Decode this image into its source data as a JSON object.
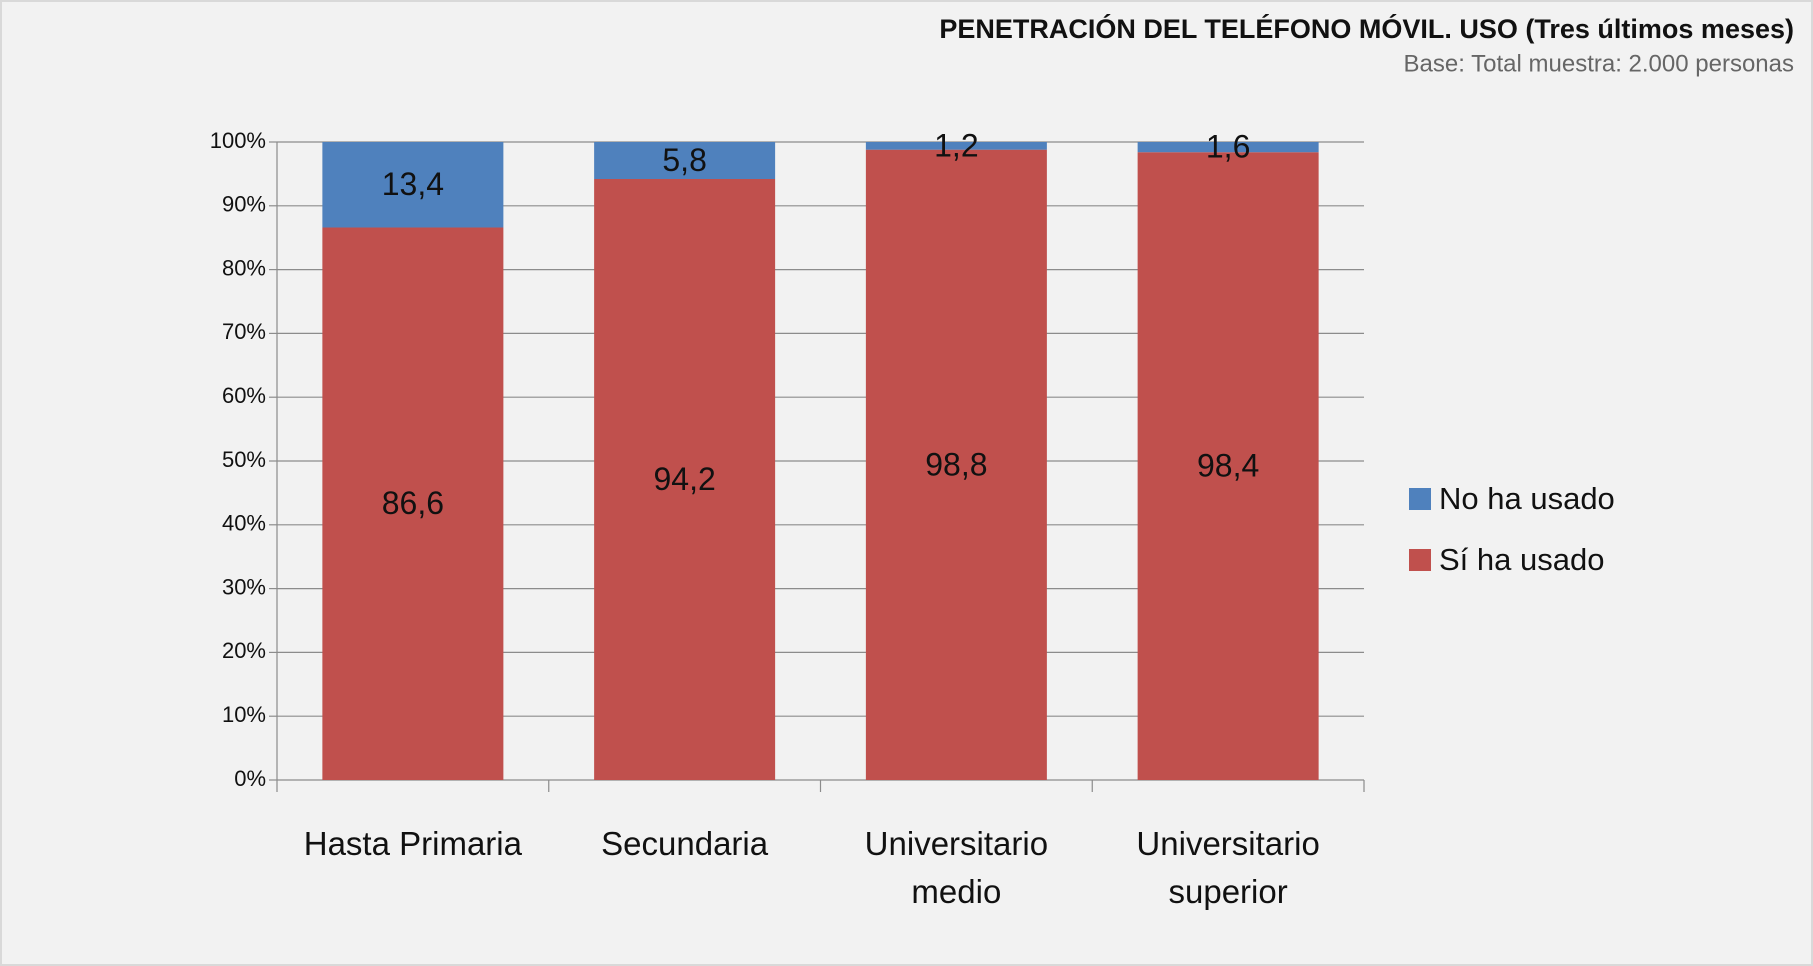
{
  "chart_data": {
    "type": "stacked_bar",
    "title": "PENETRACIÓN DEL TELÉFONO MÓVIL. USO (Tres últimos meses)",
    "subtitle": "Base: Total muestra: 2.000 personas",
    "categories": [
      "Hasta Primaria",
      "Secundaria",
      "Universitario medio",
      "Universitario superior"
    ],
    "series": [
      {
        "name": "Sí ha usado",
        "color": "#c0504d",
        "values": [
          86.6,
          94.2,
          98.8,
          98.4
        ],
        "value_labels": [
          "86,6",
          "94,2",
          "98,8",
          "98,4"
        ]
      },
      {
        "name": "No ha usado",
        "color": "#4f81bd",
        "values": [
          13.4,
          5.8,
          1.2,
          1.6
        ],
        "value_labels": [
          "13,4",
          "5,8",
          "1,2",
          "1,6"
        ]
      }
    ],
    "ylim": [
      0,
      100
    ],
    "yticks": [
      {
        "value": 0,
        "label": "0%"
      },
      {
        "value": 10,
        "label": "10%"
      },
      {
        "value": 20,
        "label": "20%"
      },
      {
        "value": 30,
        "label": "30%"
      },
      {
        "value": 40,
        "label": "40%"
      },
      {
        "value": 50,
        "label": "50%"
      },
      {
        "value": 60,
        "label": "60%"
      },
      {
        "value": 70,
        "label": "70%"
      },
      {
        "value": 80,
        "label": "80%"
      },
      {
        "value": 90,
        "label": "90%"
      },
      {
        "value": 100,
        "label": "100%"
      }
    ],
    "grid": true,
    "legend": "right"
  }
}
